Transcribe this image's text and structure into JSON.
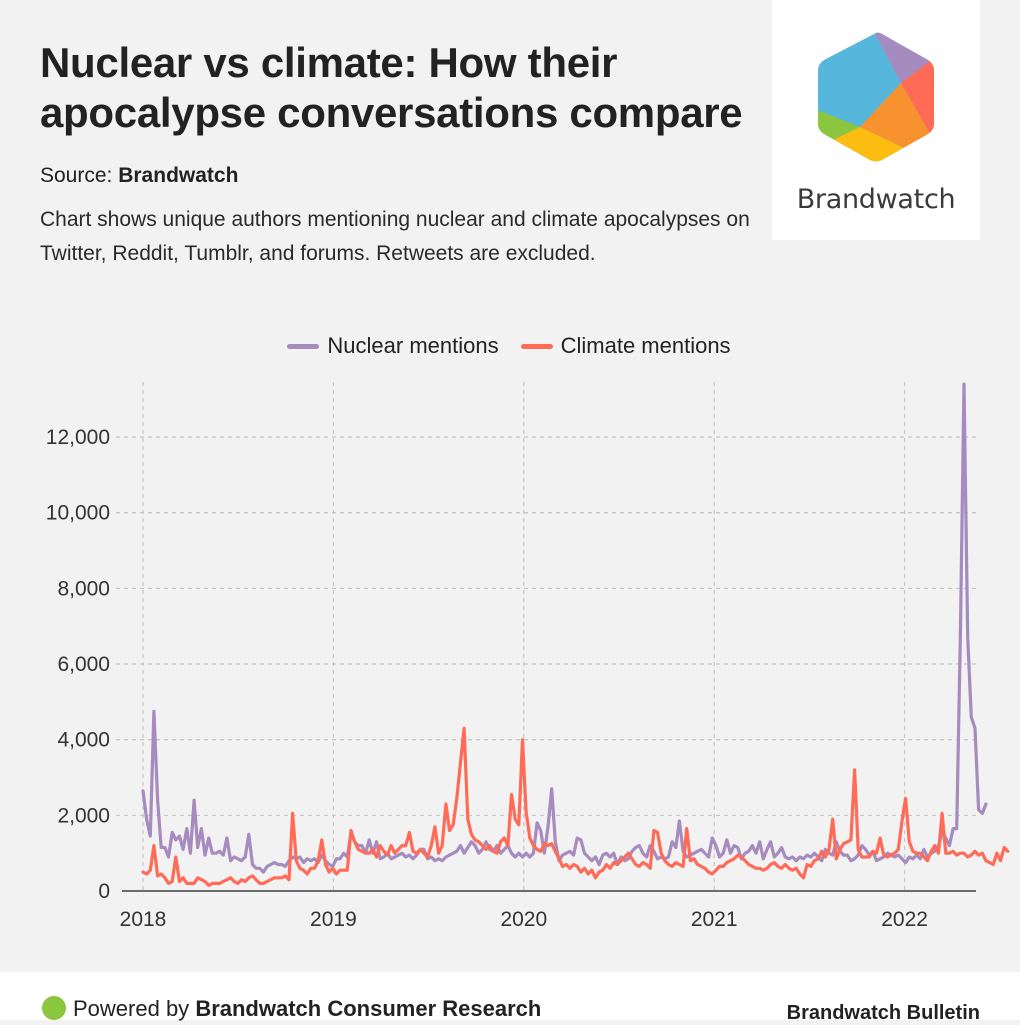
{
  "header": {
    "title": "Nuclear vs climate: How their apocalypse conversations compare",
    "source_label": "Source:",
    "source_name": "Brandwatch",
    "description": "Chart shows unique authors mentioning nuclear and climate apocalypses on Twitter, Reddit, Tumblr, and forums. Retweets are excluded."
  },
  "logo": {
    "wordmark": "Brandwatch",
    "colors": [
      "#56b6dc",
      "#a68bbf",
      "#ff6b57",
      "#f7922f",
      "#fdbd10",
      "#8cc63f"
    ]
  },
  "footer": {
    "powered_prefix": "Powered by",
    "powered_name": "Brandwatch Consumer Research",
    "right_label": "Brandwatch Bulletin",
    "dot_color": "#8cc63f"
  },
  "chart_data": {
    "type": "line",
    "title": "Nuclear vs climate: How their apocalypse conversations compare",
    "xlabel": "",
    "ylabel": "",
    "x_start": 2018.0,
    "x_step_weeks": 1,
    "xlim": [
      2018,
      2022.35
    ],
    "ylim": [
      0,
      13500
    ],
    "xticks": [
      2018,
      2019,
      2020,
      2021,
      2022
    ],
    "xtick_labels": [
      "2018",
      "2019",
      "2020",
      "2021",
      "2022"
    ],
    "yticks": [
      0,
      2000,
      4000,
      6000,
      8000,
      10000,
      12000
    ],
    "ytick_labels": [
      "0",
      "2,000",
      "4,000",
      "6,000",
      "8,000",
      "10,000",
      "12,000"
    ],
    "grid": true,
    "legend_position": "top-center",
    "series": [
      {
        "name": "Nuclear mentions",
        "color": "#a68bbf",
        "values": [
          2650,
          1900,
          1450,
          4750,
          2400,
          1150,
          1150,
          900,
          1550,
          1350,
          1450,
          1100,
          1650,
          1000,
          2400,
          1150,
          1650,
          950,
          1400,
          1000,
          1000,
          1050,
          950,
          1400,
          800,
          900,
          850,
          800,
          900,
          1500,
          700,
          600,
          600,
          500,
          650,
          700,
          750,
          700,
          700,
          650,
          800,
          900,
          850,
          900,
          750,
          850,
          800,
          850,
          750,
          950,
          800,
          700,
          650,
          850,
          850,
          1000,
          900,
          1550,
          1300,
          1200,
          1200,
          1000,
          1350,
          1000,
          1300,
          850,
          900,
          1000,
          850,
          900,
          950,
          1000,
          900,
          950,
          850,
          950,
          1100,
          1100,
          850,
          900,
          800,
          850,
          800,
          900,
          950,
          1000,
          1050,
          1200,
          1000,
          1150,
          1300,
          1200,
          1000,
          1100,
          1300,
          1100,
          1050,
          1200,
          1000,
          1100,
          1200,
          1000,
          900,
          1000,
          900,
          1000,
          900,
          1000,
          1800,
          1600,
          1000,
          1700,
          2700,
          1300,
          800,
          950,
          1000,
          1050,
          950,
          1400,
          1350,
          1000,
          900,
          800,
          900,
          700,
          950,
          1000,
          900,
          1000,
          700,
          900,
          800,
          850,
          1050,
          1150,
          1200,
          1000,
          900,
          1200,
          1050,
          850,
          900,
          850,
          900,
          1300,
          1150,
          1850,
          1050,
          900,
          950,
          1000,
          1050,
          1100,
          1000,
          900,
          1400,
          1200,
          900,
          1000,
          1350,
          1000,
          1200,
          1150,
          850,
          1000,
          1050,
          1200,
          1000,
          1300,
          850,
          1100,
          1300,
          900,
          1000,
          1150,
          900,
          850,
          900,
          800,
          900,
          850,
          950,
          900,
          1000,
          900,
          800,
          1100,
          1000,
          950,
          1300,
          1050,
          950,
          950,
          800,
          850,
          950,
          1200,
          1100,
          950,
          1050,
          800,
          850,
          900,
          1000,
          950,
          900,
          950,
          850,
          750,
          900,
          850,
          950,
          850,
          1100,
          900,
          1000,
          1050,
          1200,
          1550,
          1400,
          1200,
          1650,
          1650,
          6800,
          13400,
          6700,
          4600,
          4300,
          2150,
          2050,
          2300
        ]
      },
      {
        "name": "Climate mentions",
        "color": "#ff6b57",
        "values": [
          500,
          450,
          550,
          1200,
          400,
          450,
          350,
          200,
          250,
          900,
          250,
          350,
          200,
          200,
          200,
          350,
          300,
          250,
          150,
          200,
          200,
          200,
          250,
          300,
          350,
          250,
          200,
          300,
          250,
          350,
          400,
          300,
          200,
          200,
          250,
          300,
          350,
          350,
          350,
          400,
          300,
          2050,
          800,
          600,
          550,
          450,
          600,
          600,
          800,
          1350,
          700,
          500,
          600,
          450,
          550,
          550,
          550,
          1600,
          1300,
          1100,
          1050,
          1000,
          1000,
          1100,
          900,
          1200,
          1050,
          950,
          1200,
          1000,
          1100,
          1200,
          1200,
          1550,
          1050,
          1000,
          1100,
          1000,
          900,
          1200,
          1700,
          1000,
          1200,
          2300,
          1600,
          1750,
          2450,
          3400,
          4300,
          1900,
          1500,
          1350,
          1300,
          1200,
          1100,
          1200,
          1050,
          1000,
          1300,
          1400,
          1200,
          2550,
          1900,
          1750,
          4000,
          2100,
          1400,
          1200,
          1100,
          1050,
          1250,
          1200,
          1250,
          1050,
          850,
          650,
          700,
          600,
          700,
          650,
          500,
          600,
          450,
          550,
          350,
          500,
          550,
          700,
          600,
          750,
          700,
          800,
          900,
          1000,
          850,
          700,
          650,
          750,
          700,
          600,
          1600,
          1550,
          1000,
          800,
          700,
          650,
          750,
          700,
          650,
          1650,
          800,
          850,
          700,
          650,
          600,
          500,
          450,
          550,
          650,
          650,
          750,
          800,
          850,
          950,
          900,
          800,
          700,
          650,
          600,
          600,
          550,
          600,
          700,
          750,
          650,
          600,
          700,
          600,
          550,
          600,
          450,
          350,
          700,
          650,
          800,
          850,
          1050,
          900,
          1100,
          1900,
          850,
          1100,
          1250,
          1300,
          1350,
          3200,
          1100,
          900,
          900,
          900,
          1050,
          1000,
          1400,
          950,
          900,
          950,
          1000,
          1100,
          1850,
          2450,
          1300,
          1050,
          1000,
          1000,
          900,
          800,
          1050,
          1200,
          1000,
          2050,
          1000,
          1000,
          1050,
          950,
          1000,
          1000,
          900,
          950,
          1050,
          950,
          1000,
          800,
          750,
          700,
          1000,
          800,
          1150,
          1050
        ]
      }
    ]
  }
}
